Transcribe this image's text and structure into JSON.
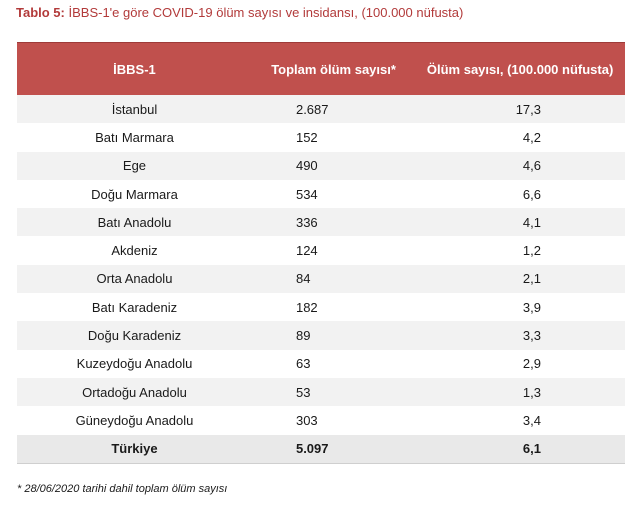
{
  "title": {
    "label": "Tablo 5:",
    "text": "İBBS-1'e göre COVID-19 ölüm sayısı ve insidansı, (100.000 nüfusta)"
  },
  "table": {
    "headers": [
      "İBBS-1",
      "Toplam ölüm sayısı*",
      "Ölüm sayısı, (100.000 nüfusta)"
    ],
    "rows": [
      {
        "region": "İstanbul",
        "deaths": "2.687",
        "rate": "17,3"
      },
      {
        "region": "Batı Marmara",
        "deaths": "152",
        "rate": "4,2"
      },
      {
        "region": "Ege",
        "deaths": "490",
        "rate": "4,6"
      },
      {
        "region": "Doğu Marmara",
        "deaths": "534",
        "rate": "6,6"
      },
      {
        "region": "Batı Anadolu",
        "deaths": "336",
        "rate": "4,1"
      },
      {
        "region": "Akdeniz",
        "deaths": "124",
        "rate": "1,2"
      },
      {
        "region": "Orta Anadolu",
        "deaths": "84",
        "rate": "2,1"
      },
      {
        "region": "Batı Karadeniz",
        "deaths": "182",
        "rate": "3,9"
      },
      {
        "region": "Doğu Karadeniz",
        "deaths": "89",
        "rate": "3,3"
      },
      {
        "region": "Kuzeydoğu Anadolu",
        "deaths": "63",
        "rate": "2,9"
      },
      {
        "region": "Ortadoğu Anadolu",
        "deaths": "53",
        "rate": "1,3"
      },
      {
        "region": "Güneydoğu Anadolu",
        "deaths": "303",
        "rate": "3,4"
      }
    ],
    "total": {
      "region": "Türkiye",
      "deaths": "5.097",
      "rate": "6,1"
    }
  },
  "footnote": "* 28/06/2020 tarihi dahil toplam ölüm sayısı"
}
